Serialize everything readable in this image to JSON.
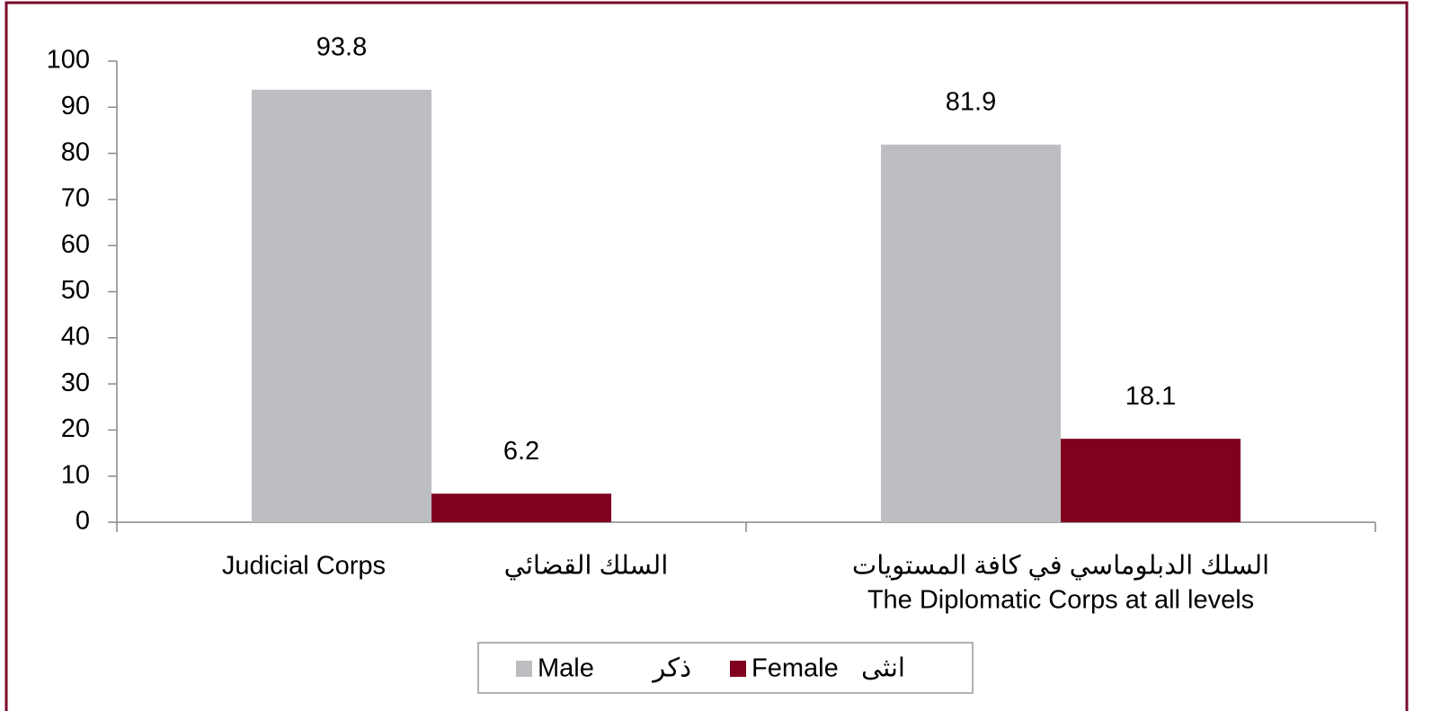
{
  "chart_data": {
    "type": "bar",
    "categories": [
      [
        "Judicial Corps",
        "السلك القضائي"
      ],
      [
        "السلك الدبلوماسي في كافة المستويات",
        "The Diplomatic Corps at all levels"
      ]
    ],
    "series": [
      {
        "name": "Male",
        "name_ar": "ذكر",
        "color": "#bdbec2",
        "values": [
          93.8,
          81.9
        ]
      },
      {
        "name": "Female",
        "name_ar": "انثى",
        "color": "#800020",
        "values": [
          6.2,
          18.1
        ]
      }
    ],
    "ylim": [
      0,
      100
    ],
    "yticks": [
      0,
      10,
      20,
      30,
      40,
      50,
      60,
      70,
      80,
      90,
      100
    ],
    "grid": false,
    "legend": "bottom"
  }
}
